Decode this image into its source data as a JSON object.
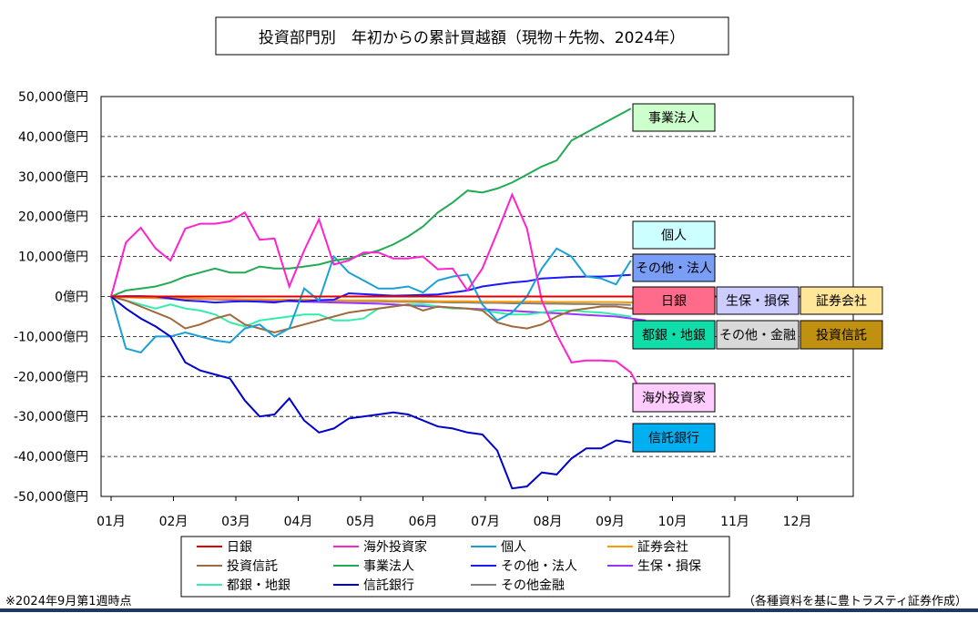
{
  "chart_data": {
    "type": "line",
    "title": "投資部門別　年初からの累計買越額（現物＋先物、2024年）",
    "xlabel": "",
    "ylabel": "",
    "x_ticks": [
      "01月",
      "02月",
      "03月",
      "04月",
      "05月",
      "06月",
      "07月",
      "08月",
      "09月",
      "10月",
      "11月",
      "12月"
    ],
    "y_ticks": [
      "50,000億円",
      "40,000億円",
      "30,000億円",
      "20,000億円",
      "10,000億円",
      "0億円",
      "-10,000億円",
      "-20,000億円",
      "-30,000億円",
      "-40,000億円",
      "-50,000億円"
    ],
    "ylim": [
      -50000,
      50000
    ],
    "grid": "horizontal dashed",
    "legend_position": "bottom",
    "series": [
      {
        "name": "日銀",
        "color": "#e00000",
        "label": "日銀",
        "label_bg": "#ff6b8a",
        "values": [
          0,
          0,
          0,
          0,
          0,
          0,
          0,
          0,
          0,
          0,
          0,
          0,
          0,
          0,
          0,
          0,
          0,
          0,
          0,
          0,
          0,
          0,
          0,
          0,
          0,
          0,
          0,
          0,
          0,
          0,
          0,
          0,
          0,
          0,
          0,
          0,
          0
        ]
      },
      {
        "name": "海外投資家",
        "color": "#ff22cc",
        "label": "海外投資家",
        "label_bg": "#ffccff",
        "values": [
          0,
          13500,
          17200,
          12000,
          9000,
          17000,
          18200,
          18200,
          18800,
          21000,
          14200,
          14500,
          2500,
          11500,
          19300,
          8000,
          9000,
          11000,
          11000,
          9500,
          9500,
          10000,
          6800,
          7000,
          1500,
          7000,
          16000,
          25500,
          17000,
          -1000,
          -9500,
          -16500,
          -16000,
          -16000,
          -16200,
          -19000,
          -26000
        ]
      },
      {
        "name": "個人",
        "color": "#1aa0d8",
        "label": "個人",
        "label_bg": "#ccffff",
        "values": [
          0,
          -13000,
          -14000,
          -10000,
          -10000,
          -9000,
          -10000,
          -11000,
          -11500,
          -8000,
          -7000,
          -10000,
          -8000,
          2000,
          -1000,
          10000,
          6000,
          4000,
          2000,
          2000,
          2500,
          1000,
          4000,
          5000,
          5500,
          -2000,
          -6000,
          -4000,
          0,
          7000,
          12000,
          10000,
          5000,
          4500,
          3000,
          9000
        ]
      },
      {
        "name": "証券会社",
        "color": "#ff9900",
        "label": "証券会社",
        "label_bg": "#ffe699",
        "values": [
          0,
          -200,
          -300,
          -300,
          -400,
          -500,
          -500,
          -600,
          -600,
          -700,
          -700,
          -800,
          -800,
          -800,
          -900,
          -900,
          -1000,
          -1000,
          -1000,
          -1100,
          -1100,
          -1100,
          -1200,
          -1200,
          -1200,
          -1300,
          -1300,
          -1300,
          -1300,
          -1300,
          -1400,
          -1400,
          -1400,
          -1400,
          -1400,
          -1500,
          -1500
        ]
      },
      {
        "name": "投資信託",
        "color": "#a0693c",
        "label": "投資信託",
        "label_bg": "#c09010",
        "values": [
          0,
          -1000,
          -2500,
          -4000,
          -5500,
          -8000,
          -7000,
          -5500,
          -4500,
          -7000,
          -8000,
          -9000,
          -8000,
          -7000,
          -6000,
          -5000,
          -4000,
          -3500,
          -3000,
          -2500,
          -2000,
          -3500,
          -2500,
          -2800,
          -3000,
          -3500,
          -6500,
          -7500,
          -8000,
          -7000,
          -5000,
          -3500,
          -3000,
          -2500,
          -2500,
          -3000,
          -2500
        ]
      },
      {
        "name": "事業法人",
        "color": "#22aa55",
        "label": "事業法人",
        "label_bg": "#ccffcc",
        "values": [
          0,
          1500,
          2000,
          2500,
          3500,
          5000,
          6000,
          7000,
          6000,
          6000,
          7500,
          7000,
          7000,
          7500,
          8000,
          9000,
          9500,
          10500,
          11500,
          13000,
          15000,
          17500,
          21000,
          23500,
          26500,
          26000,
          27000,
          28500,
          30500,
          32500,
          34000,
          39000,
          41000,
          43000,
          45000,
          47000
        ]
      },
      {
        "name": "その他・法人",
        "color": "#1a1aff",
        "label": "その他・法人",
        "label_bg": "#7a9ef5",
        "values": [
          0,
          100,
          100,
          0,
          -500,
          -1000,
          -1200,
          -1500,
          -1300,
          -1200,
          -1300,
          -1500,
          -1000,
          -1200,
          -900,
          -800,
          800,
          600,
          400,
          200,
          300,
          400,
          500,
          1000,
          1500,
          2500,
          3000,
          3500,
          3800,
          4500,
          4700,
          4900,
          5000,
          5000,
          5200,
          5400
        ]
      },
      {
        "name": "生保・損保",
        "color": "#9933ff",
        "label": "生保・損保",
        "label_bg": "#ccccff",
        "values": [
          0,
          -100,
          -200,
          -300,
          -400,
          -500,
          -600,
          -700,
          -800,
          -900,
          -1000,
          -1100,
          -1200,
          -1300,
          -1400,
          -1500,
          -1600,
          -1700,
          -1800,
          -2000,
          -2200,
          -2400,
          -2600,
          -2800,
          -3000,
          -3200,
          -3400,
          -3600,
          -3800,
          -4000,
          -4200,
          -4400,
          -4600,
          -4800,
          -5000,
          -5500,
          -6000
        ]
      },
      {
        "name": "都銀・地銀",
        "color": "#33eeaa",
        "label": "都銀・地銀",
        "label_bg": "#11ddaa",
        "values": [
          0,
          -1000,
          -2000,
          -3000,
          -2000,
          -3000,
          -3500,
          -4500,
          -6500,
          -7500,
          -6000,
          -5500,
          -5000,
          -4500,
          -4500,
          -6000,
          -6000,
          -5500,
          -3000,
          -2500,
          -2000,
          -2000,
          -2500,
          -3000,
          -3000,
          -3500,
          -4000,
          -4500,
          -4500,
          -4000,
          -3500,
          -3500,
          -3800,
          -4000,
          -4500,
          -5000
        ]
      },
      {
        "name": "信託銀行",
        "color": "#0000cc",
        "label": "信託銀行",
        "label_bg": "#00b0f0",
        "values": [
          0,
          -3000,
          -5500,
          -7500,
          -10000,
          -16500,
          -18500,
          -19500,
          -20500,
          -26000,
          -30000,
          -29500,
          -25500,
          -31000,
          -34000,
          -33000,
          -30500,
          -30000,
          -29500,
          -29000,
          -29500,
          -31000,
          -32500,
          -33000,
          -34000,
          -34500,
          -38500,
          -48000,
          -47500,
          -44000,
          -44500,
          -40500,
          -38000,
          -38000,
          -36000,
          -36500
        ]
      },
      {
        "name": "その他金融",
        "color": "#808080",
        "label": "その他・金融",
        "label_bg": "#d9d9d9",
        "values": [
          0,
          -200,
          -300,
          -400,
          -500,
          -500,
          -600,
          -700,
          -700,
          -800,
          -800,
          -900,
          -900,
          -1000,
          -1000,
          -1100,
          -1100,
          -1200,
          -1200,
          -1300,
          -1300,
          -1400,
          -1400,
          -1500,
          -1500,
          -1600,
          -1600,
          -1700,
          -1700,
          -1800,
          -1800,
          -1900,
          -1900,
          -2000,
          -2000,
          -2100
        ]
      }
    ],
    "legend_order": [
      "日銀",
      "海外投資家",
      "個人",
      "証券会社",
      "投資信託",
      "事業法人",
      "その他・法人",
      "生保・損保",
      "都銀・地銀",
      "信託銀行",
      "その他金融"
    ],
    "footnote": "※2024年9月第1週時点",
    "source": "（各種資料を基に豊トラスティ証券作成）"
  }
}
